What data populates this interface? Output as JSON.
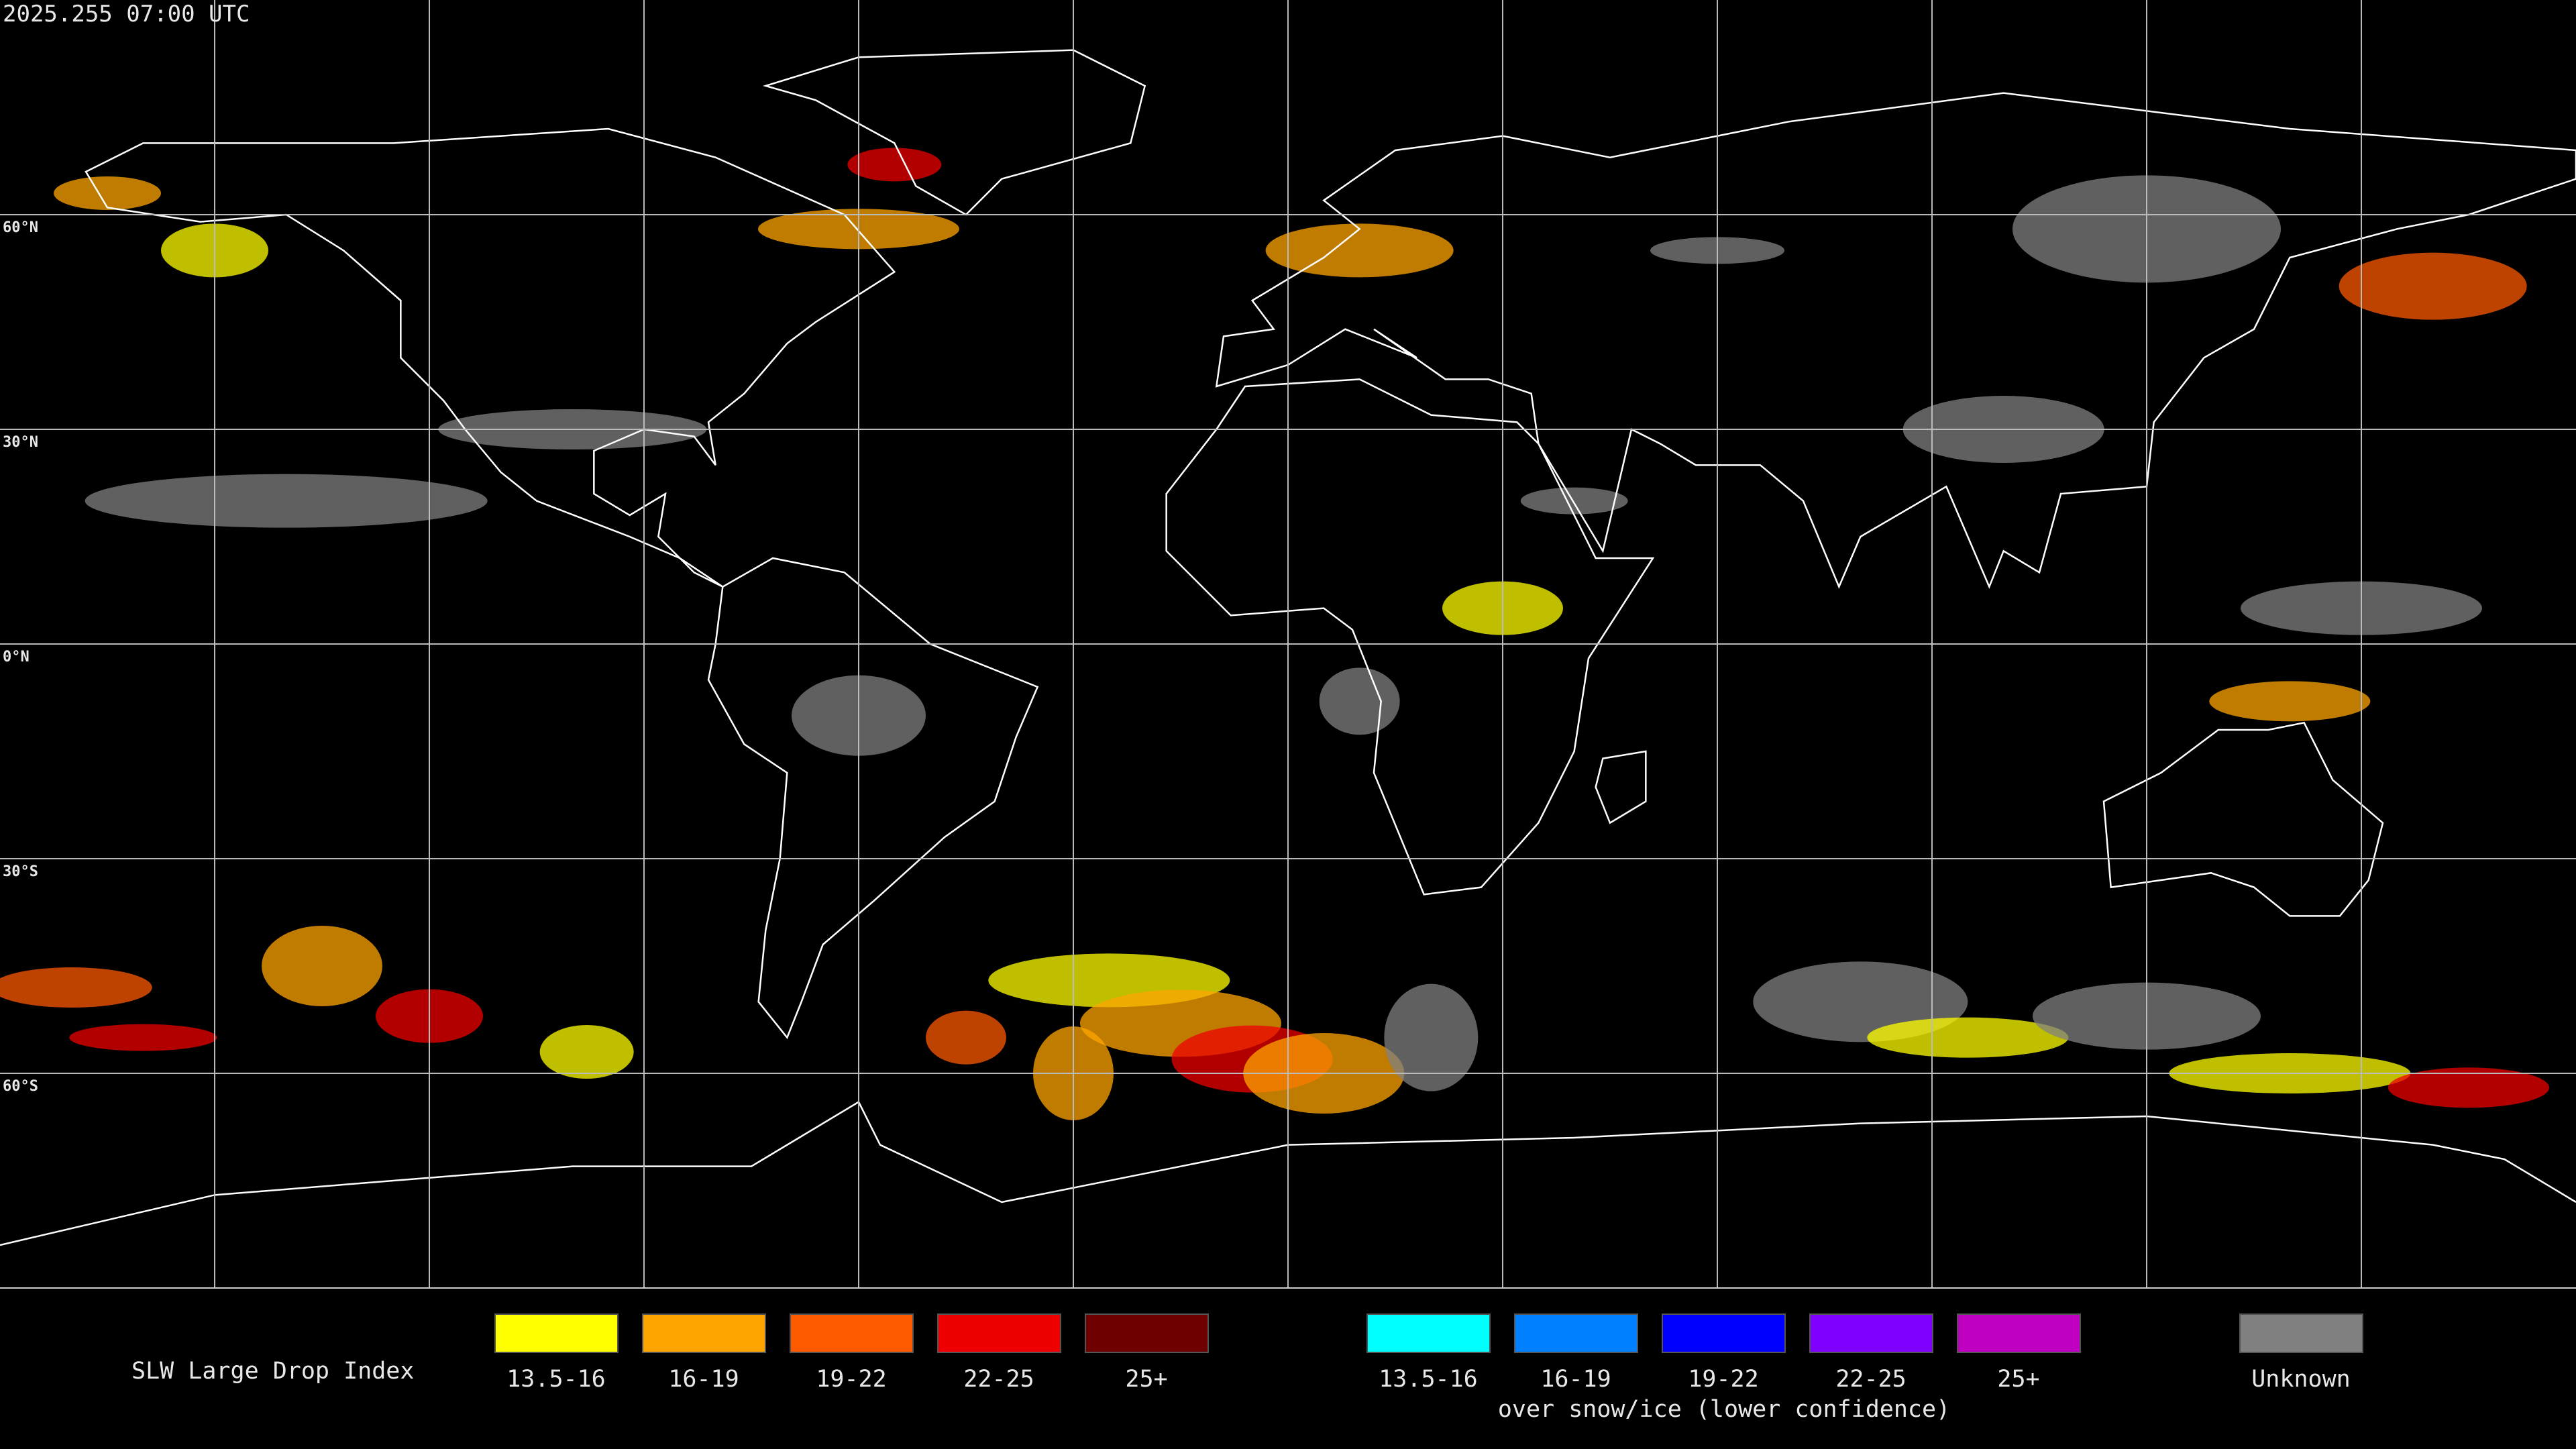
{
  "header": {
    "timestamp": "2025.255 07:00 UTC"
  },
  "grid": {
    "lat_labels": [
      "60°N",
      "30°N",
      "0°N",
      "30°S",
      "60°S"
    ]
  },
  "legend": {
    "title": "SLW Large Drop Index",
    "groups": [
      {
        "items": [
          {
            "label": "13.5-16",
            "color": "#ffff00"
          },
          {
            "label": "16-19",
            "color": "#ffa500"
          },
          {
            "label": "19-22",
            "color": "#ff5a00"
          },
          {
            "label": "22-25",
            "color": "#ee0000"
          },
          {
            "label": "25+",
            "color": "#6e0000"
          }
        ]
      },
      {
        "caption": "over snow/ice (lower confidence)",
        "items": [
          {
            "label": "13.5-16",
            "color": "#00ffff"
          },
          {
            "label": "16-19",
            "color": "#0080ff"
          },
          {
            "label": "19-22",
            "color": "#0000ff"
          },
          {
            "label": "22-25",
            "color": "#8000ff"
          },
          {
            "label": "25+",
            "color": "#c000c0"
          }
        ]
      },
      {
        "items": [
          {
            "label": "Unknown",
            "color": "#808080"
          }
        ]
      }
    ]
  }
}
